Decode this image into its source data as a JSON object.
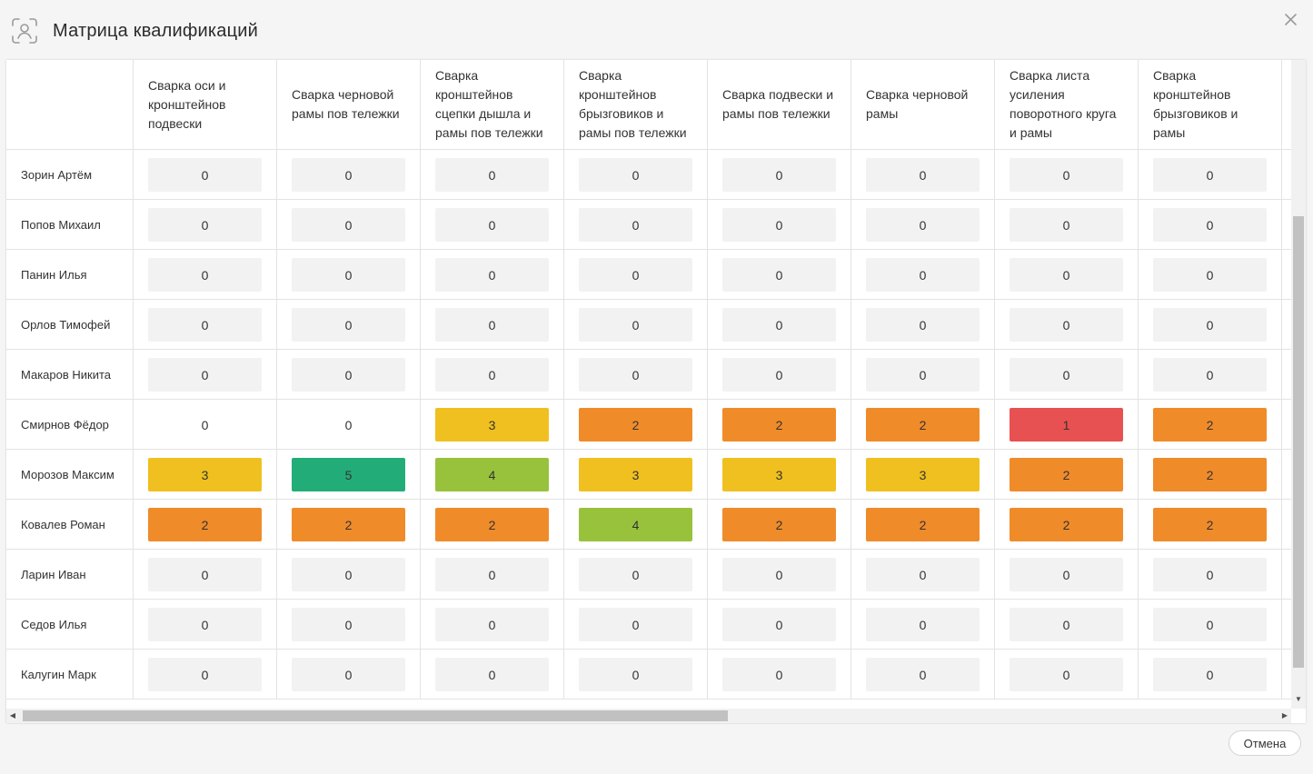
{
  "dialog": {
    "title": "Матрица квалификаций",
    "cancel_label": "Отмена"
  },
  "colors": {
    "empty": "#f2f2f2",
    "level_1": "#e85151",
    "level_2": "#f08b2a",
    "level_3": "#f0c020",
    "level_4": "#98c23c",
    "level_5": "#22ad78"
  },
  "icons": {
    "title_icon": "face-scan-icon",
    "close_icon": "close-icon",
    "scroll_down": "scroll-down-arrow-icon",
    "scroll_left": "scroll-left-arrow-icon",
    "scroll_right": "scroll-right-arrow-icon"
  },
  "matrix": {
    "columns": [
      "Сварка оси и кронштейнов подвески",
      "Сварка черновой рамы пов тележки",
      "Сварка кронштейнов сцепки дышла и рамы пов тележки",
      "Сварка кронштейнов брызговиков и рамы пов тележки",
      "Сварка подвески и рамы пов тележки",
      "Сварка черновой рамы",
      "Сварка листа усиления поворотного круга и рамы",
      "Сварка кронштейнов брызговиков и рамы"
    ],
    "rows": [
      {
        "name": "Зорин Артём",
        "values": [
          "0",
          "0",
          "0",
          "0",
          "0",
          "0",
          "0",
          "0"
        ],
        "levels": [
          0,
          0,
          0,
          0,
          0,
          0,
          0,
          0
        ]
      },
      {
        "name": "Попов Михаил",
        "values": [
          "0",
          "0",
          "0",
          "0",
          "0",
          "0",
          "0",
          "0"
        ],
        "levels": [
          0,
          0,
          0,
          0,
          0,
          0,
          0,
          0
        ]
      },
      {
        "name": "Панин Илья",
        "values": [
          "0",
          "0",
          "0",
          "0",
          "0",
          "0",
          "0",
          "0"
        ],
        "levels": [
          0,
          0,
          0,
          0,
          0,
          0,
          0,
          0
        ]
      },
      {
        "name": "Орлов Тимофей",
        "values": [
          "0",
          "0",
          "0",
          "0",
          "0",
          "0",
          "0",
          "0"
        ],
        "levels": [
          0,
          0,
          0,
          0,
          0,
          0,
          0,
          0
        ]
      },
      {
        "name": "Макаров Никита",
        "values": [
          "0",
          "0",
          "0",
          "0",
          "0",
          "0",
          "0",
          "0"
        ],
        "levels": [
          0,
          0,
          0,
          0,
          0,
          0,
          0,
          0
        ]
      },
      {
        "name": "Смирнов Фёдор",
        "values": [
          "0",
          "0",
          "3",
          "2",
          "2",
          "2",
          "1",
          "2"
        ],
        "levels": [
          -1,
          -1,
          3,
          2,
          2,
          2,
          1,
          2
        ]
      },
      {
        "name": "Морозов Максим",
        "values": [
          "3",
          "5",
          "4",
          "3",
          "3",
          "3",
          "2",
          "2"
        ],
        "levels": [
          3,
          5,
          4,
          3,
          3,
          3,
          2,
          2
        ]
      },
      {
        "name": "Ковалев Роман",
        "values": [
          "2",
          "2",
          "2",
          "4",
          "2",
          "2",
          "2",
          "2"
        ],
        "levels": [
          2,
          2,
          2,
          4,
          2,
          2,
          2,
          2
        ]
      },
      {
        "name": "Ларин Иван",
        "values": [
          "0",
          "0",
          "0",
          "0",
          "0",
          "0",
          "0",
          "0"
        ],
        "levels": [
          0,
          0,
          0,
          0,
          0,
          0,
          0,
          0
        ]
      },
      {
        "name": "Седов Илья",
        "values": [
          "0",
          "0",
          "0",
          "0",
          "0",
          "0",
          "0",
          "0"
        ],
        "levels": [
          0,
          0,
          0,
          0,
          0,
          0,
          0,
          0
        ]
      },
      {
        "name": "Калугин Марк",
        "values": [
          "0",
          "0",
          "0",
          "0",
          "0",
          "0",
          "0",
          "0"
        ],
        "levels": [
          0,
          0,
          0,
          0,
          0,
          0,
          0,
          0
        ]
      }
    ]
  }
}
